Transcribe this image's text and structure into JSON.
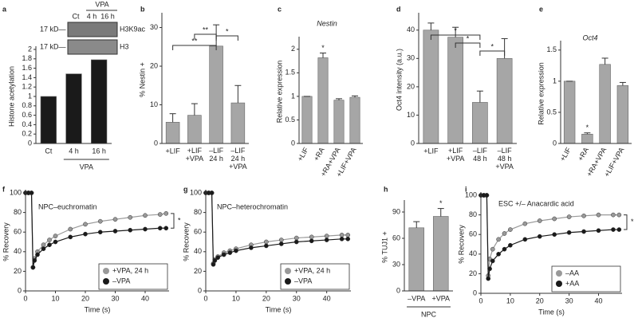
{
  "chart_data": [
    {
      "type": "bar",
      "panel": "a",
      "ylabel": "Histone acetylation",
      "categories": [
        "Ct",
        "4 h",
        "16 h"
      ],
      "values": [
        1,
        1.48,
        1.78
      ],
      "color": "#1a1a1a",
      "ylim": [
        0,
        2
      ],
      "yticks": [
        0,
        0.2,
        0.4,
        0.6,
        0.8,
        1,
        1.2,
        1.4,
        1.6,
        1.8,
        2
      ],
      "group_label": "VPA",
      "blot": {
        "group": "VPA",
        "lanes": [
          "Ct",
          "4 h",
          "16 h"
        ],
        "markers": [
          "17 kD—",
          "17 kD—"
        ],
        "bands": [
          "H3K9ac",
          "H3"
        ]
      }
    },
    {
      "type": "bar",
      "panel": "b",
      "ylabel": "% Nestin +",
      "categories": [
        "+LIF",
        "+LIF\n+VPA",
        "–LIF\n24 h",
        "–LIF\n24 h\n+VPA"
      ],
      "values": [
        5.5,
        7.3,
        25.2,
        10.5
      ],
      "errors": [
        2.2,
        3,
        5.5,
        4.5
      ],
      "color": "#a6a6a6",
      "ylim": [
        0,
        33
      ],
      "yticks": [
        0,
        10,
        20,
        30
      ],
      "annotations": [
        "**",
        "**",
        "*"
      ]
    },
    {
      "type": "bar",
      "panel": "c",
      "title": "Nestin",
      "ylabel": "Relative expression",
      "categories": [
        "+LIF",
        "+RA",
        "+RA+VPA",
        "+LIF+VPA"
      ],
      "values": [
        1,
        1.82,
        0.92,
        0.98
      ],
      "errors": [
        0,
        0.1,
        0.03,
        0.03
      ],
      "color": "#a6a6a6",
      "ylim": [
        0,
        2.2
      ],
      "yticks": [
        0,
        0.5,
        1,
        1.5,
        2
      ],
      "annotations": [
        "*"
      ]
    },
    {
      "type": "bar",
      "panel": "d",
      "ylabel": "Oct4 intensity (a.u.)",
      "categories": [
        "+LIF",
        "+LIF\n+VPA",
        "–LIF\n48 h",
        "–LIF\n48 h\n+VPA"
      ],
      "values": [
        40,
        37.5,
        14.5,
        30
      ],
      "errors": [
        2.5,
        3.5,
        4,
        7
      ],
      "color": "#a6a6a6",
      "ylim": [
        0,
        45
      ],
      "yticks": [
        0,
        10,
        20,
        30,
        40
      ],
      "annotations": [
        "*",
        "*",
        "*"
      ]
    },
    {
      "type": "bar",
      "panel": "e",
      "title": "Oct4",
      "ylabel": "Relative expression",
      "categories": [
        "+LIF",
        "+RA",
        "+RA+VPA",
        "+LIF+VPA"
      ],
      "values": [
        1,
        0.15,
        1.27,
        0.93
      ],
      "errors": [
        0,
        0.02,
        0.1,
        0.05
      ],
      "color": "#a6a6a6",
      "ylim": [
        0,
        1.6
      ],
      "yticks": [
        0,
        0.5,
        1,
        1.5
      ],
      "annotations": [
        "*"
      ]
    },
    {
      "type": "line",
      "panel": "f",
      "title": "NPC–euchromatin",
      "xlabel": "Time (s)",
      "ylabel": "% Recovery",
      "x": [
        0,
        1,
        2,
        2.5,
        3,
        4,
        6,
        8,
        10,
        15,
        20,
        25,
        30,
        35,
        40,
        45,
        47
      ],
      "series": [
        {
          "name": "+VPA, 24 h",
          "color": "#999999",
          "values": [
            100,
            100,
            100,
            24,
            33,
            40,
            47,
            52,
            56,
            63,
            68,
            71,
            73,
            75,
            77,
            78,
            79
          ]
        },
        {
          "name": "–VPA",
          "color": "#1a1a1a",
          "values": [
            100,
            100,
            100,
            24,
            31,
            37,
            43,
            47,
            50,
            55,
            58,
            60,
            61,
            62,
            63,
            64,
            64
          ]
        }
      ],
      "xlim": [
        0,
        48
      ],
      "xticks": [
        0,
        10,
        20,
        30,
        40
      ],
      "ylim": [
        0,
        100
      ],
      "yticks": [
        0,
        20,
        40,
        60,
        80,
        100
      ],
      "legend": "lower right",
      "annotations": [
        "*"
      ]
    },
    {
      "type": "line",
      "panel": "g",
      "title": "NPC–heterochromatin",
      "xlabel": "Time (s)",
      "ylabel": "% Recovery",
      "x": [
        0,
        1,
        2,
        2.5,
        3,
        4,
        6,
        8,
        10,
        15,
        20,
        25,
        30,
        35,
        40,
        45,
        47
      ],
      "series": [
        {
          "name": "+VPA, 24 h",
          "color": "#999999",
          "values": [
            100,
            100,
            100,
            28,
            32,
            35,
            39,
            41,
            43,
            47,
            50,
            52,
            54,
            55,
            56,
            57,
            57
          ]
        },
        {
          "name": "–VPA",
          "color": "#1a1a1a",
          "values": [
            100,
            100,
            100,
            27,
            31,
            34,
            37,
            39,
            41,
            44,
            46,
            48,
            50,
            51,
            52,
            53,
            53
          ]
        }
      ],
      "xlim": [
        0,
        48
      ],
      "xticks": [
        0,
        10,
        20,
        30,
        40
      ],
      "ylim": [
        0,
        100
      ],
      "yticks": [
        0,
        20,
        40,
        60,
        80,
        100
      ],
      "legend": "lower right"
    },
    {
      "type": "bar",
      "panel": "h",
      "ylabel": "% TUJ1 +",
      "categories": [
        "–VPA",
        "+VPA"
      ],
      "values": [
        72,
        85
      ],
      "errors": [
        7,
        9
      ],
      "color": "#a6a6a6",
      "ylim": [
        0,
        100
      ],
      "yticks": [
        0,
        30,
        60,
        90
      ],
      "group_label": "NPC",
      "annotations": [
        "*"
      ]
    },
    {
      "type": "line",
      "panel": "i",
      "title": "ESC +/– Anacardic acid",
      "xlabel": "Time (s)",
      "ylabel": "% Recovery",
      "x": [
        0,
        1,
        2,
        2.5,
        3,
        4,
        6,
        8,
        10,
        15,
        20,
        25,
        30,
        35,
        40,
        45,
        47
      ],
      "series": [
        {
          "name": "–AA",
          "color": "#999999",
          "values": [
            100,
            100,
            100,
            18,
            35,
            45,
            55,
            61,
            65,
            71,
            74,
            76,
            78,
            79,
            80,
            80,
            80
          ]
        },
        {
          "name": "+AA",
          "color": "#1a1a1a",
          "values": [
            100,
            100,
            100,
            15,
            25,
            33,
            40,
            45,
            49,
            55,
            58,
            60,
            62,
            63,
            64,
            65,
            65
          ]
        }
      ],
      "xlim": [
        0,
        48
      ],
      "xticks": [
        0,
        10,
        20,
        30,
        40
      ],
      "ylim": [
        0,
        100
      ],
      "yticks": [
        0,
        20,
        40,
        60,
        80,
        100
      ],
      "legend": "lower right",
      "annotations": [
        "*"
      ]
    }
  ]
}
